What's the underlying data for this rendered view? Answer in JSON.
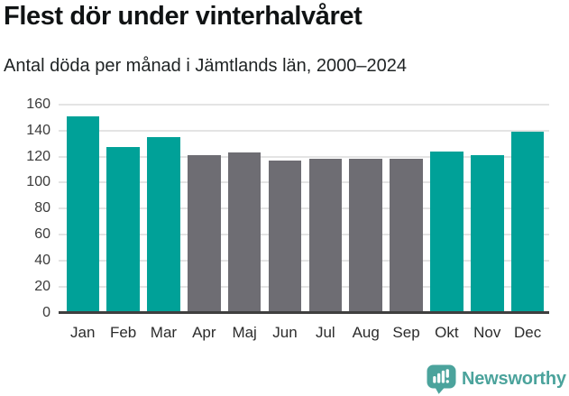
{
  "chart_data": {
    "type": "bar",
    "title": "Flest dör under vinterhalvåret",
    "subtitle": "Antal döda per månad i Jämtlands län, 2000–2024",
    "categories": [
      "Jan",
      "Feb",
      "Mar",
      "Apr",
      "Maj",
      "Jun",
      "Jul",
      "Aug",
      "Sep",
      "Okt",
      "Nov",
      "Dec"
    ],
    "values": [
      151,
      127,
      135,
      121,
      123,
      117,
      118,
      118,
      118,
      124,
      121,
      139
    ],
    "bar_colors": [
      "teal",
      "teal",
      "teal",
      "gray",
      "gray",
      "gray",
      "gray",
      "gray",
      "gray",
      "teal",
      "teal",
      "teal"
    ],
    "colors": {
      "teal": "#00a198",
      "gray": "#6e6d73"
    },
    "highlighted_months": [
      "Jan",
      "Feb",
      "Mar",
      "Okt",
      "Nov",
      "Dec"
    ],
    "xlabel": "",
    "ylabel": "",
    "ylim": [
      0,
      160
    ],
    "yticks": [
      0,
      20,
      40,
      60,
      80,
      100,
      120,
      140,
      160
    ],
    "grid": true,
    "legend_position": "none"
  },
  "footer": {
    "brand": "Newsworthy",
    "brand_color": "#4ba39c",
    "icon": "newsworthy-speech-bubble-bar-chart-icon"
  }
}
